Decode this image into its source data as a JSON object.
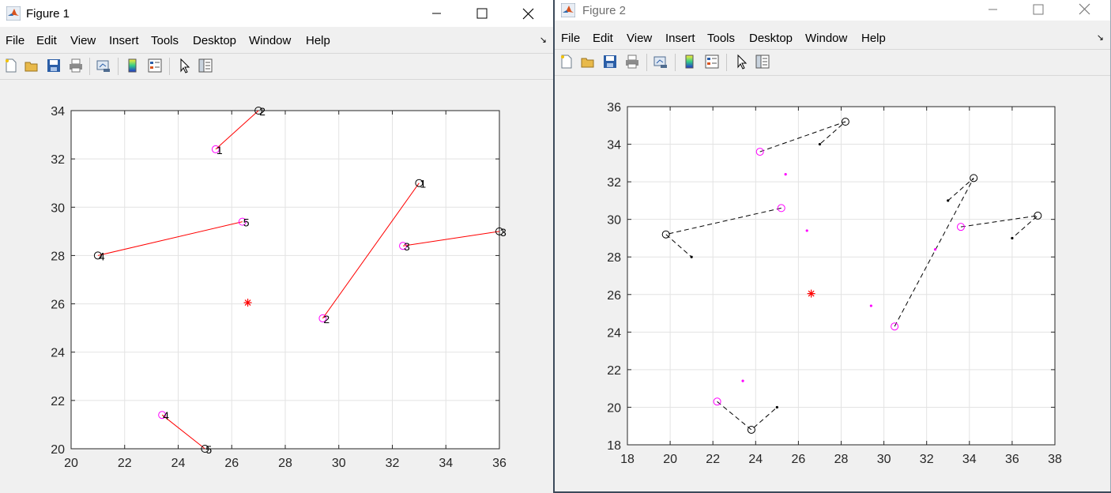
{
  "windows": [
    {
      "title": "Figure 1",
      "menu": [
        "File",
        "Edit",
        "View",
        "Insert",
        "Tools",
        "Desktop",
        "Window",
        "Help"
      ],
      "toolbar_icons": [
        "new-figure-icon",
        "open-file-icon",
        "save-icon",
        "print-icon",
        "link-plot-icon",
        "colorbar-icon",
        "legend-icon",
        "edit-plot-icon",
        "property-inspector-icon"
      ],
      "chart_data": {
        "type": "scatter",
        "xlim": [
          20,
          36
        ],
        "ylim": [
          20,
          34
        ],
        "xticks": [
          "20",
          "22",
          "24",
          "26",
          "28",
          "30",
          "32",
          "34",
          "36"
        ],
        "yticks": [
          "20",
          "22",
          "24",
          "26",
          "28",
          "30",
          "32",
          "34"
        ],
        "grid": true,
        "center_star": {
          "x": 26.6,
          "y": 26.05,
          "color": "#ff0000"
        },
        "magenta_circles": [
          {
            "x": 25.4,
            "y": 32.4,
            "label": "1"
          },
          {
            "x": 29.4,
            "y": 25.4,
            "label": "2"
          },
          {
            "x": 32.4,
            "y": 28.4,
            "label": "3"
          },
          {
            "x": 23.4,
            "y": 21.4,
            "label": "4"
          },
          {
            "x": 26.4,
            "y": 29.4,
            "label": "5"
          }
        ],
        "black_circles": [
          {
            "x": 33.0,
            "y": 31.0,
            "label": "1"
          },
          {
            "x": 27.0,
            "y": 34.0,
            "label": "2"
          },
          {
            "x": 36.0,
            "y": 29.0,
            "label": "3"
          },
          {
            "x": 21.0,
            "y": 28.0,
            "label": "4"
          },
          {
            "x": 25.0,
            "y": 20.0,
            "label": "5"
          }
        ],
        "red_lines": [
          [
            [
              25.4,
              32.4
            ],
            [
              27.0,
              34.0
            ]
          ],
          [
            [
              29.4,
              25.4
            ],
            [
              33.0,
              31.0
            ]
          ],
          [
            [
              32.4,
              28.4
            ],
            [
              36.0,
              29.0
            ]
          ],
          [
            [
              21.0,
              28.0
            ],
            [
              26.4,
              29.4
            ]
          ],
          [
            [
              23.4,
              21.4
            ],
            [
              25.0,
              20.0
            ]
          ]
        ]
      }
    },
    {
      "title": "Figure 2",
      "menu": [
        "File",
        "Edit",
        "View",
        "Insert",
        "Tools",
        "Desktop",
        "Window",
        "Help"
      ],
      "toolbar_icons": [
        "new-figure-icon",
        "open-file-icon",
        "save-icon",
        "print-icon",
        "link-plot-icon",
        "colorbar-icon",
        "legend-icon",
        "edit-plot-icon",
        "property-inspector-icon"
      ],
      "chart_data": {
        "type": "scatter",
        "xlim": [
          18,
          38
        ],
        "ylim": [
          18,
          36
        ],
        "xticks": [
          "18",
          "20",
          "22",
          "24",
          "26",
          "28",
          "30",
          "32",
          "34",
          "36",
          "38"
        ],
        "yticks": [
          "18",
          "20",
          "22",
          "24",
          "26",
          "28",
          "30",
          "32",
          "34",
          "36"
        ],
        "grid": true,
        "center_star": {
          "x": 26.6,
          "y": 26.05,
          "color": "#ff0000"
        },
        "magenta_circles": [
          {
            "x": 24.2,
            "y": 33.6
          },
          {
            "x": 25.2,
            "y": 30.6
          },
          {
            "x": 30.5,
            "y": 24.3
          },
          {
            "x": 33.6,
            "y": 29.6
          },
          {
            "x": 22.2,
            "y": 20.3
          }
        ],
        "magenta_dots": [
          {
            "x": 25.4,
            "y": 32.4
          },
          {
            "x": 26.4,
            "y": 29.4
          },
          {
            "x": 29.4,
            "y": 25.4
          },
          {
            "x": 32.4,
            "y": 28.4
          },
          {
            "x": 23.4,
            "y": 21.4
          }
        ],
        "black_circles": [
          {
            "x": 28.2,
            "y": 35.2
          },
          {
            "x": 19.8,
            "y": 29.2
          },
          {
            "x": 34.2,
            "y": 32.2
          },
          {
            "x": 37.2,
            "y": 30.2
          },
          {
            "x": 23.8,
            "y": 18.8
          }
        ],
        "black_dots": [
          {
            "x": 27.0,
            "y": 34.0
          },
          {
            "x": 21.0,
            "y": 28.0
          },
          {
            "x": 33.0,
            "y": 31.0
          },
          {
            "x": 36.0,
            "y": 29.0
          },
          {
            "x": 25.0,
            "y": 20.0
          }
        ],
        "dashed_lines": [
          [
            [
              24.2,
              33.6
            ],
            [
              28.2,
              35.2
            ],
            [
              27.0,
              34.0
            ]
          ],
          [
            [
              25.2,
              30.6
            ],
            [
              19.8,
              29.2
            ],
            [
              21.0,
              28.0
            ]
          ],
          [
            [
              30.5,
              24.3
            ],
            [
              34.2,
              32.2
            ],
            [
              33.0,
              31.0
            ]
          ],
          [
            [
              33.6,
              29.6
            ],
            [
              37.2,
              30.2
            ],
            [
              36.0,
              29.0
            ]
          ],
          [
            [
              22.2,
              20.3
            ],
            [
              23.8,
              18.8
            ],
            [
              25.0,
              20.0
            ]
          ]
        ]
      }
    }
  ]
}
